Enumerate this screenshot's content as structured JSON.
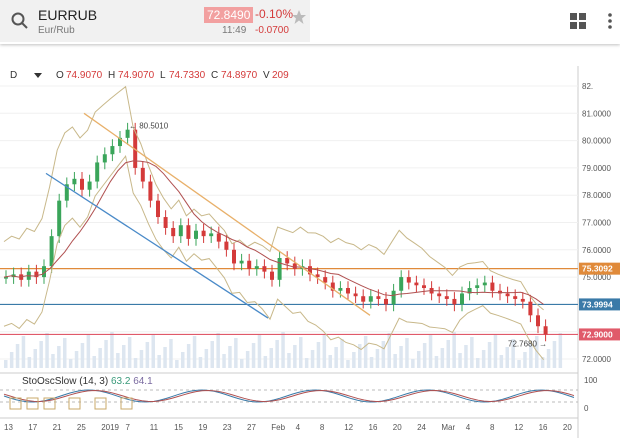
{
  "header": {
    "symbol": "EURRUB",
    "subtitle": "Eur/Rub",
    "price": "72.8490",
    "change_pct": "-0.10%",
    "time": "11:49",
    "change_abs": "-0.0700"
  },
  "toolbar": {
    "period": "D",
    "open_label": "O",
    "open": "74.9070",
    "high_label": "H",
    "high": "74.9070",
    "low_label": "L",
    "low": "74.7330",
    "close_label": "C",
    "close": "74.8970",
    "volume_label": "V",
    "volume": "209"
  },
  "chart": {
    "price_axis": [
      "82.",
      "81.0000",
      "80.0000",
      "79.0000",
      "78.0000",
      "77.0000",
      "76.0000",
      "75.0000",
      "74.0000",
      "73.0000",
      "72.0000"
    ],
    "date_axis": [
      "13",
      "17",
      "21",
      "25",
      "2019",
      "7",
      "11",
      "15",
      "19",
      "23",
      "27",
      "Feb",
      "4",
      "8",
      "12",
      "16",
      "20",
      "24",
      "Mar",
      "4",
      "8",
      "12",
      "16",
      "20"
    ],
    "hlines": [
      {
        "label": "75.3092",
        "color": "#e08a3a"
      },
      {
        "label": "73.9994",
        "color": "#3a7aa8"
      },
      {
        "label": "72.9000",
        "color": "#e05a6a"
      }
    ],
    "annotations": {
      "high": "80.5010",
      "low": "72.7680"
    }
  },
  "indicator": {
    "name": "StoOscSlow (14, 3)",
    "k": "63.2",
    "d": "64.1",
    "axis": [
      "100",
      "0"
    ]
  },
  "colors": {
    "bull": "#3aa55a",
    "bear": "#d43a3a",
    "band": "#c8b88a",
    "ma": "#b05050",
    "volume": "#dde6f0"
  }
}
